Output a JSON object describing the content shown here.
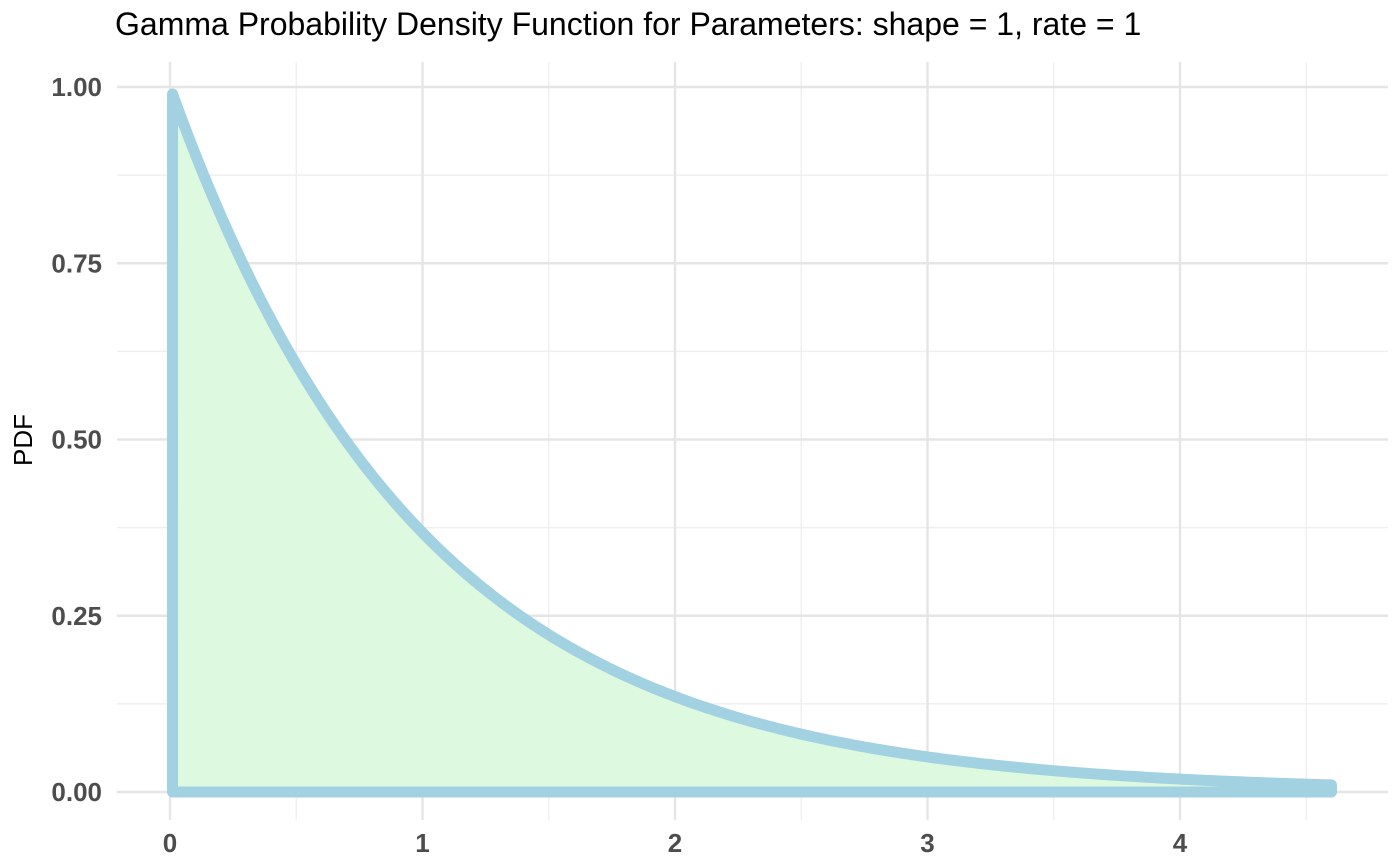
{
  "chart_data": {
    "type": "area",
    "title": "Gamma Probability Density Function for Parameters:  shape = 1, rate = 1",
    "xlabel": "",
    "ylabel": "PDF",
    "shape": 1,
    "rate": 1,
    "xlim": [
      0.01,
      4.6
    ],
    "ylim": [
      0,
      1
    ],
    "xticks": [
      0,
      1,
      2,
      3,
      4
    ],
    "xtick_labels": [
      "0",
      "1",
      "2",
      "3",
      "4"
    ],
    "yticks": [
      0,
      0.25,
      0.5,
      0.75,
      1
    ],
    "ytick_labels": [
      "0.00",
      "0.25",
      "0.50",
      "0.75",
      "1.00"
    ],
    "series": [
      {
        "x": [
          0.01,
          0.25,
          0.5,
          0.75,
          1.0,
          1.25,
          1.5,
          1.75,
          2.0,
          2.25,
          2.5,
          2.75,
          3.0,
          3.25,
          3.5,
          3.75,
          4.0,
          4.25,
          4.6
        ],
        "y": [
          0.99,
          0.779,
          0.607,
          0.472,
          0.368,
          0.287,
          0.223,
          0.174,
          0.135,
          0.105,
          0.082,
          0.064,
          0.05,
          0.039,
          0.03,
          0.024,
          0.018,
          0.014,
          0.01
        ]
      }
    ],
    "line_color": "#a2d1e1",
    "fill_color": "#ddf9df",
    "grid": true,
    "legend": "none"
  }
}
